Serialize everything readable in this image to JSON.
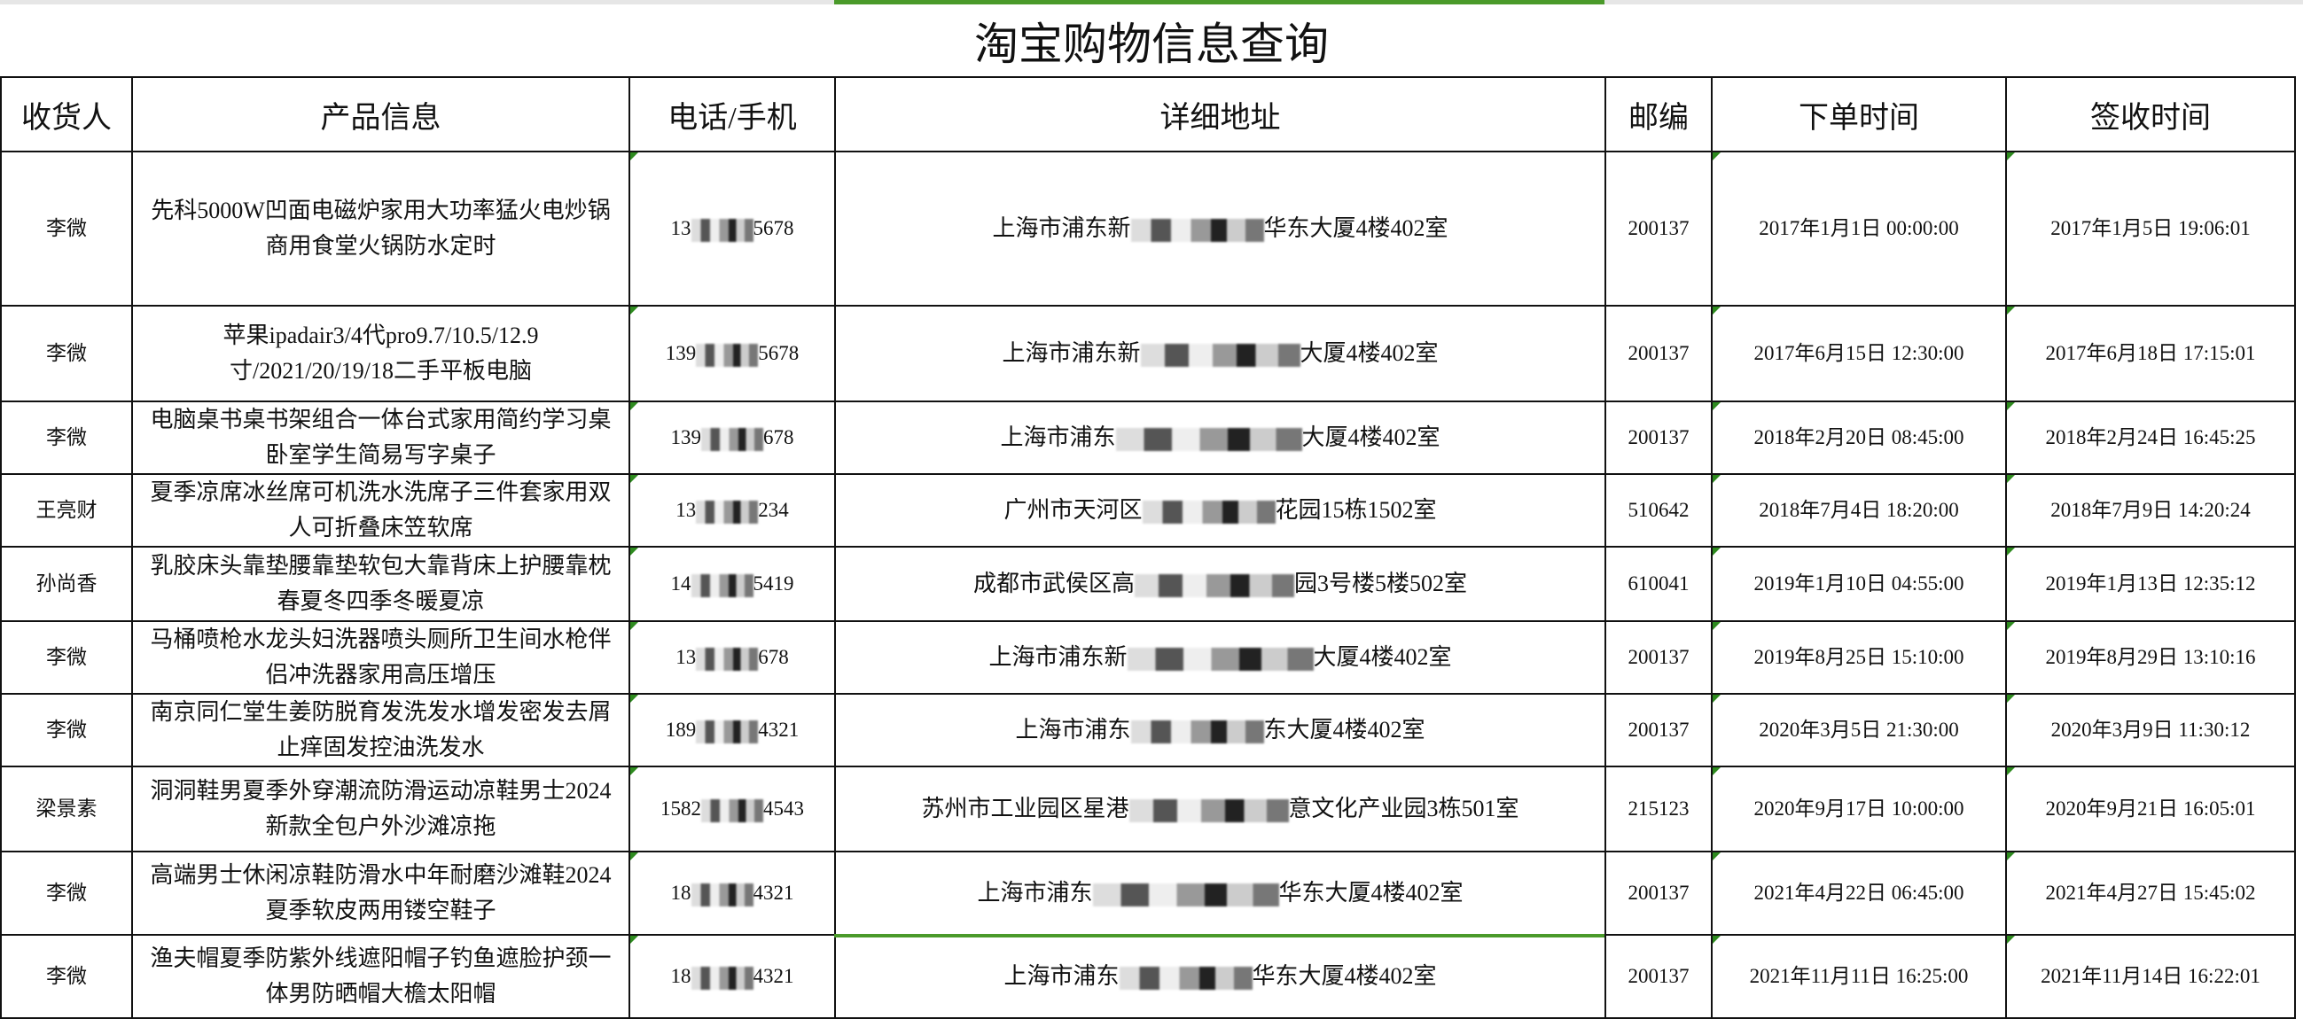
{
  "title": "淘宝购物信息查询",
  "headers": [
    "收货人",
    "产品信息",
    "电话/手机",
    "详细地址",
    "邮编",
    "下单时间",
    "签收时间"
  ],
  "rows": [
    {
      "name": "李微",
      "product": "先科5000W凹面电磁炉家用大功率猛火电炒锅商用食堂火锅防水定时",
      "phone_prefix": "13",
      "phone_suffix": "5678",
      "addr_prefix": "上海市浦东新",
      "addr_suffix": "华东大厦4楼402室",
      "zip": "200137",
      "order_time": "2017年1月1日 00:00:00",
      "sign_time": "2017年1月5日 19:06:01"
    },
    {
      "name": "李微",
      "product": "苹果ipadair3/4代pro9.7/10.5/12.9寸/2021/20/19/18二手平板电脑",
      "phone_prefix": "139",
      "phone_suffix": "5678",
      "addr_prefix": "上海市浦东新",
      "addr_suffix": "大厦4楼402室",
      "zip": "200137",
      "order_time": "2017年6月15日 12:30:00",
      "sign_time": "2017年6月18日 17:15:01"
    },
    {
      "name": "李微",
      "product": "电脑桌书桌书架组合一体台式家用简约学习桌卧室学生简易写字桌子",
      "phone_prefix": "139",
      "phone_suffix": "678",
      "addr_prefix": "上海市浦东",
      "addr_suffix": "大厦4楼402室",
      "zip": "200137",
      "order_time": "2018年2月20日 08:45:00",
      "sign_time": "2018年2月24日 16:45:25"
    },
    {
      "name": "王亮财",
      "product": "夏季凉席冰丝席可机洗水洗席子三件套家用双人可折叠床笠软席",
      "phone_prefix": "13",
      "phone_suffix": "234",
      "addr_prefix": "广州市天河区",
      "addr_suffix": "花园15栋1502室",
      "zip": "510642",
      "order_time": "2018年7月4日 18:20:00",
      "sign_time": "2018年7月9日 14:20:24"
    },
    {
      "name": "孙尚香",
      "product": "乳胶床头靠垫腰靠垫软包大靠背床上护腰靠枕春夏冬四季冬暖夏凉",
      "phone_prefix": "14",
      "phone_suffix": "5419",
      "addr_prefix": "成都市武侯区高",
      "addr_suffix": "园3号楼5楼502室",
      "zip": "610041",
      "order_time": "2019年1月10日 04:55:00",
      "sign_time": "2019年1月13日 12:35:12"
    },
    {
      "name": "李微",
      "product": "马桶喷枪水龙头妇洗器喷头厕所卫生间水枪伴侣冲洗器家用高压增压",
      "phone_prefix": "13",
      "phone_suffix": "678",
      "addr_prefix": "上海市浦东新",
      "addr_suffix": "大厦4楼402室",
      "zip": "200137",
      "order_time": "2019年8月25日 15:10:00",
      "sign_time": "2019年8月29日 13:10:16"
    },
    {
      "name": "李微",
      "product": "南京同仁堂生姜防脱育发洗发水增发密发去屑止痒固发控油洗发水",
      "phone_prefix": "189",
      "phone_suffix": "4321",
      "addr_prefix": "上海市浦东",
      "addr_suffix": "东大厦4楼402室",
      "zip": "200137",
      "order_time": "2020年3月5日 21:30:00",
      "sign_time": "2020年3月9日 11:30:12"
    },
    {
      "name": "梁景素",
      "product": "洞洞鞋男夏季外穿潮流防滑运动凉鞋男士2024新款全包户外沙滩凉拖",
      "phone_prefix": "1582",
      "phone_suffix": "4543",
      "addr_prefix": "苏州市工业园区星港",
      "addr_suffix": "意文化产业园3栋501室",
      "zip": "215123",
      "order_time": "2020年9月17日 10:00:00",
      "sign_time": "2020年9月21日 16:05:01"
    },
    {
      "name": "李微",
      "product": "高端男士休闲凉鞋防滑水中年耐磨沙滩鞋2024夏季软皮两用镂空鞋子",
      "phone_prefix": "18",
      "phone_suffix": "4321",
      "addr_prefix": "上海市浦东",
      "addr_suffix": "华东大厦4楼402室",
      "zip": "200137",
      "order_time": "2021年4月22日 06:45:00",
      "sign_time": "2021年4月27日 15:45:02"
    },
    {
      "name": "李微",
      "product": "渔夫帽夏季防紫外线遮阳帽子钓鱼遮脸护颈一体男防晒帽大檐太阳帽",
      "phone_prefix": "18",
      "phone_suffix": "4321",
      "addr_prefix": "上海市浦东",
      "addr_suffix": "华东大厦4楼402室",
      "zip": "200137",
      "order_time": "2021年11月11日 16:25:00",
      "sign_time": "2021年11月14日 16:22:01"
    }
  ]
}
